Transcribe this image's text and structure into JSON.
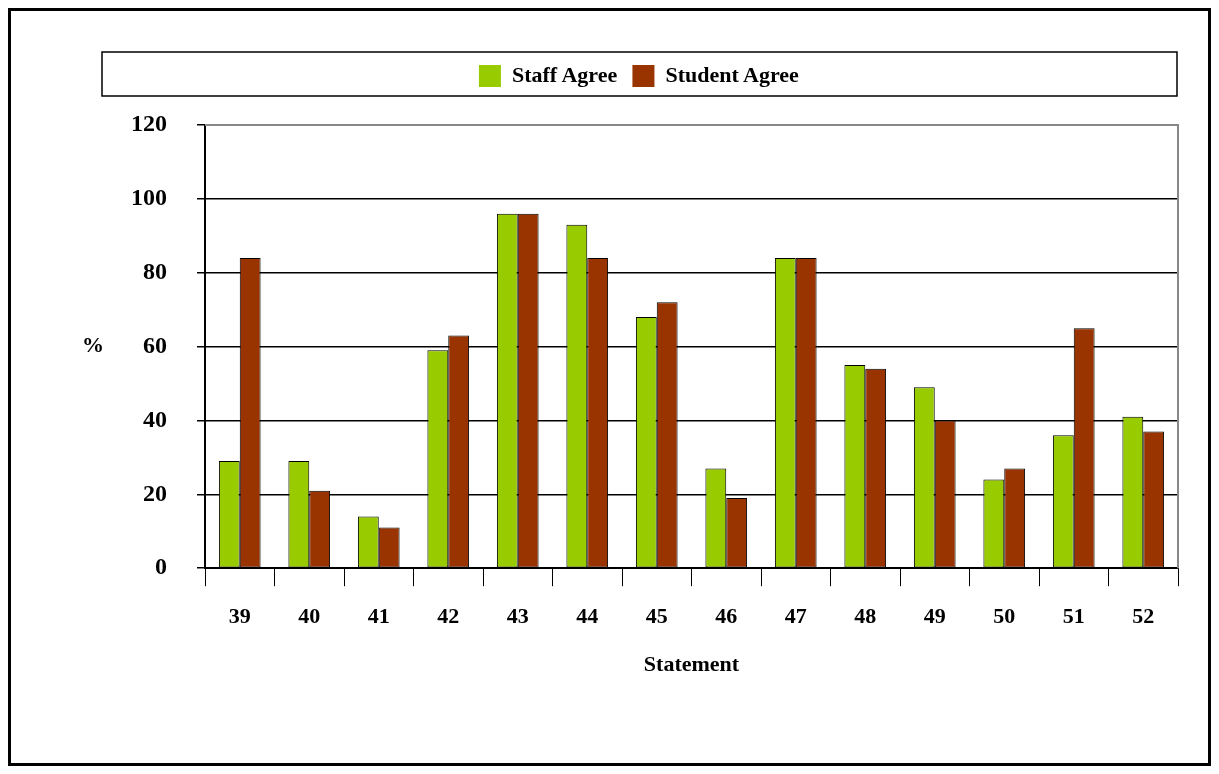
{
  "chart_data": {
    "type": "bar",
    "xlabel": "Statement",
    "ylabel": "%",
    "categories": [
      "39",
      "40",
      "41",
      "42",
      "43",
      "44",
      "45",
      "46",
      "47",
      "48",
      "49",
      "50",
      "51",
      "52"
    ],
    "series": [
      {
        "name": "Staff Agree",
        "color": "#99cc00",
        "values": [
          29,
          29,
          14,
          59,
          96,
          93,
          68,
          27,
          84,
          55,
          49,
          24,
          36,
          41
        ]
      },
      {
        "name": "Student Agree",
        "color": "#993300",
        "values": [
          84,
          21,
          11,
          63,
          96,
          84,
          72,
          19,
          84,
          54,
          40,
          27,
          65,
          37
        ]
      }
    ],
    "ylim": [
      0,
      120
    ],
    "yticks": [
      0,
      20,
      40,
      60,
      80,
      100,
      120
    ],
    "grid": "y",
    "legend": "top"
  }
}
